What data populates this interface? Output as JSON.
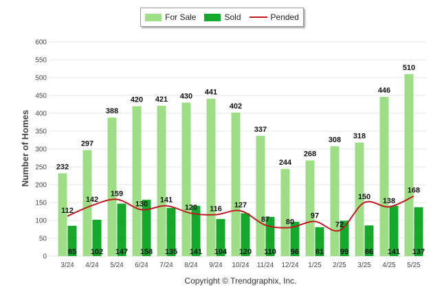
{
  "legend": {
    "for_sale": "For Sale",
    "sold": "Sold",
    "pended": "Pended"
  },
  "colors": {
    "for_sale": "#9ede87",
    "sold": "#14a82d",
    "pended": "#c0161e",
    "grid": "#e6e6e6"
  },
  "copyright": "Copyright © Trendgraphix, Inc.",
  "chart_data": {
    "type": "bar",
    "categories": [
      "3/24",
      "4/24",
      "5/24",
      "6/24",
      "7/24",
      "8/24",
      "9/24",
      "10/24",
      "11/24",
      "12/24",
      "1/25",
      "2/25",
      "3/25",
      "4/25",
      "5/25"
    ],
    "series": [
      {
        "name": "For Sale",
        "type": "bar",
        "values": [
          232,
          297,
          388,
          420,
          421,
          430,
          441,
          402,
          337,
          244,
          268,
          308,
          318,
          446,
          510
        ]
      },
      {
        "name": "Sold",
        "type": "bar",
        "values": [
          85,
          102,
          147,
          158,
          135,
          141,
          104,
          120,
          110,
          96,
          81,
          99,
          86,
          141,
          137
        ]
      },
      {
        "name": "Pended",
        "type": "line",
        "values": [
          112,
          142,
          159,
          130,
          141,
          120,
          116,
          127,
          87,
          80,
          97,
          72,
          150,
          138,
          168
        ]
      }
    ],
    "ylabel": "Number of Homes",
    "xlabel": "",
    "ylim": [
      0,
      600
    ],
    "yticks": [
      0,
      50,
      100,
      150,
      200,
      250,
      300,
      350,
      400,
      450,
      500,
      550,
      600
    ],
    "grid": true,
    "legend_position": "top-center"
  }
}
